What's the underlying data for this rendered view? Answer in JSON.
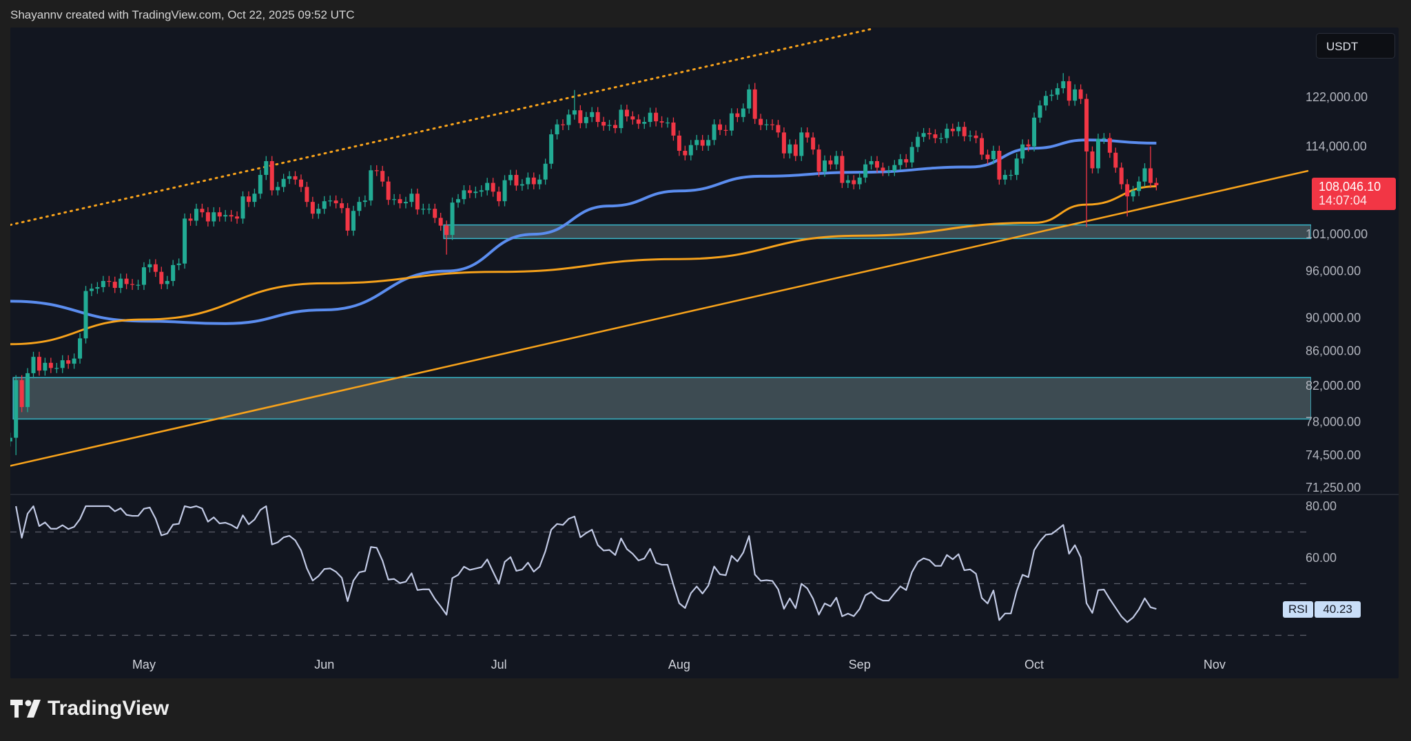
{
  "header": {
    "attribution": "Shayannv created with TradingView.com, Oct 22, 2025 09:52 UTC"
  },
  "footer": {
    "brand": "TradingView"
  },
  "price_scale": {
    "currency": "USDT",
    "last_price": "108,046.10",
    "countdown": "14:07:04"
  },
  "rsi_badge": {
    "label": "RSI",
    "value": "40.23"
  },
  "colors": {
    "up": "#22ab94",
    "down": "#f23645",
    "ma_blue": "#5b8def",
    "ma_orange": "#f7a21b",
    "zone_border": "#38b6c8",
    "zone_fill": "#45555c",
    "rsi_line": "#c3cbe6",
    "background": "#121620"
  },
  "chart_data": {
    "type": "candlestick",
    "scale": "log",
    "interval": "1D",
    "ylim": [
      71250,
      126000
    ],
    "y_ticks": [
      122000,
      114000,
      101000,
      96000,
      90000,
      86000,
      82000,
      78000,
      74500,
      71250
    ],
    "y_tick_labels": [
      "122,000.00",
      "114,000.00",
      "101,000.00",
      "96,000.00",
      "90,000.00",
      "86,000.00",
      "82,000.00",
      "78,000.00",
      "74,500.00",
      "71,250.00"
    ],
    "x_ticks": [
      {
        "date": "2025-05-01",
        "label": "May"
      },
      {
        "date": "2025-06-01",
        "label": "Jun"
      },
      {
        "date": "2025-07-01",
        "label": "Jul"
      },
      {
        "date": "2025-08-01",
        "label": "Aug"
      },
      {
        "date": "2025-09-01",
        "label": "Sep"
      },
      {
        "date": "2025-10-01",
        "label": "Oct"
      },
      {
        "date": "2025-11-01",
        "label": "Nov"
      }
    ],
    "candles_by_month": [
      {
        "month": "2025-04",
        "from_day": 8,
        "close": [
          76300,
          82600,
          79600,
          83400,
          85300,
          83700,
          84600,
          84000,
          84000,
          84900,
          84500,
          85100,
          87500,
          93400,
          93700,
          93900,
          94700,
          94600,
          93800,
          95000,
          94300,
          94200,
          94200
        ]
      },
      {
        "month": "2025-05",
        "from_day": 1,
        "close": [
          96500,
          96900,
          95900,
          94300,
          94700,
          96800,
          97000,
          103200,
          102900,
          104600,
          104100,
          102800,
          104100,
          103500,
          103700,
          103500,
          103200,
          106400,
          105600,
          106800,
          109600,
          111700,
          107300,
          107800,
          109000,
          109400,
          108900,
          107800,
          105600,
          103900,
          104600
        ]
      },
      {
        "month": "2025-06",
        "from_day": 1,
        "close": [
          105700,
          105800,
          105400,
          104700,
          101500,
          104300,
          105600,
          105800,
          110300,
          110200,
          108600,
          105900,
          106000,
          105400,
          105600,
          106800,
          104500,
          104600,
          104600,
          103300,
          102200,
          100900,
          105500,
          106000,
          107300,
          106900,
          107100,
          107300,
          108400,
          107100
        ]
      },
      {
        "month": "2025-07",
        "from_day": 1,
        "close": [
          105700,
          108800,
          109600,
          108000,
          108200,
          109200,
          108200,
          108900,
          111300,
          115900,
          117500,
          117400,
          119100,
          119800,
          117700,
          118700,
          119500,
          117900,
          117300,
          117400,
          116900,
          119900,
          118800,
          118300,
          117600,
          117900,
          119400,
          118000,
          117800,
          117800,
          115700
        ]
      },
      {
        "month": "2025-08",
        "from_day": 1,
        "close": [
          113300,
          112600,
          114200,
          115000,
          114100,
          115000,
          117500,
          116600,
          116500,
          119300,
          118700,
          120100,
          123300,
          118400,
          117400,
          117500,
          117400,
          116200,
          112900,
          114300,
          112500,
          116200,
          115400,
          113500,
          110100,
          111800,
          111200,
          112500,
          108400,
          108800,
          108200
        ]
      },
      {
        "month": "2025-09",
        "from_day": 1,
        "close": [
          109200,
          111200,
          111700,
          110700,
          110200,
          110200,
          111100,
          112000,
          111500,
          113900,
          115500,
          116100,
          115900,
          115300,
          115300,
          116800,
          116400,
          117100,
          115600,
          115700,
          115300,
          112700,
          112000,
          113300,
          108900,
          109600,
          109600,
          112100,
          114300,
          114000
        ]
      },
      {
        "month": "2025-10",
        "from_day": 1,
        "close": [
          118600,
          120600,
          122200,
          122400,
          123500,
          124700,
          121400,
          123300,
          121700,
          113200,
          110600,
          115200,
          115300,
          113000,
          110700,
          108200,
          106400,
          107200,
          108600,
          110600,
          108400,
          108046.1
        ]
      }
    ],
    "notable_lows": {
      "2025-04-09": 74500,
      "2025-06-22": 98200,
      "2025-10-10": 102000,
      "2025-10-17": 103500
    },
    "notable_highs": {
      "2025-10-06": 126100,
      "2025-08-14": 124400,
      "2025-07-14": 123200,
      "2025-10-21": 114000
    },
    "moving_averages": [
      {
        "color": "#5b8def",
        "points": [
          [
            "2025-04-08",
            92100
          ],
          [
            "2025-05-01",
            89600
          ],
          [
            "2025-05-15",
            89300
          ],
          [
            "2025-06-01",
            91000
          ],
          [
            "2025-06-22",
            96000
          ],
          [
            "2025-07-07",
            101000
          ],
          [
            "2025-07-20",
            105000
          ],
          [
            "2025-08-01",
            107200
          ],
          [
            "2025-08-15",
            109400
          ],
          [
            "2025-09-01",
            110000
          ],
          [
            "2025-09-20",
            110800
          ],
          [
            "2025-10-01",
            113700
          ],
          [
            "2025-10-10",
            115000
          ],
          [
            "2025-10-22",
            114500
          ]
        ]
      },
      {
        "color": "#f7a21b",
        "points": [
          [
            "2025-04-08",
            86800
          ],
          [
            "2025-05-01",
            89800
          ],
          [
            "2025-06-01",
            94400
          ],
          [
            "2025-07-01",
            95900
          ],
          [
            "2025-08-01",
            97600
          ],
          [
            "2025-09-01",
            100800
          ],
          [
            "2025-10-01",
            102600
          ],
          [
            "2025-10-10",
            105200
          ],
          [
            "2025-10-22",
            107900
          ]
        ]
      }
    ],
    "trendlines": [
      {
        "style": "solid",
        "color": "#f7a21b",
        "points": [
          [
            "2025-04-08",
            73400
          ],
          [
            "2025-11-17",
            110200
          ]
        ]
      },
      {
        "style": "dotted",
        "color": "#f7a21b",
        "points": [
          [
            "2025-04-08",
            102300
          ],
          [
            "2025-09-03",
            134000
          ]
        ]
      }
    ],
    "zones": [
      {
        "from": "2025-06-22",
        "top": 102300,
        "bottom": 100400
      },
      {
        "from": "2025-04-09",
        "top": 82900,
        "bottom": 78300
      }
    ],
    "rsi": {
      "period": 14,
      "last": 40.23,
      "ylim": [
        22,
        82
      ],
      "ticks": [
        80,
        60
      ],
      "tick_labels": [
        "80.00",
        "60.00"
      ],
      "bands": [
        70,
        50,
        30
      ]
    }
  }
}
